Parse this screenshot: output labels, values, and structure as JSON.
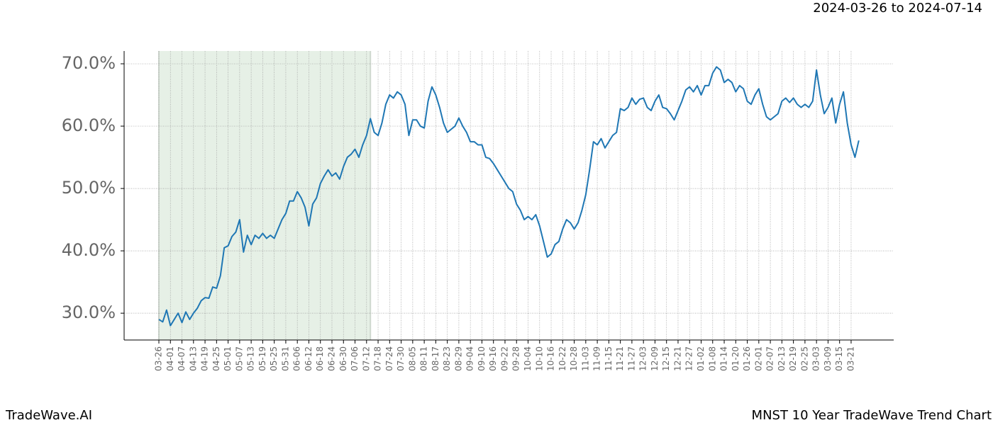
{
  "chart_data": {
    "type": "line",
    "title": "MNST 10 Year TradeWave Trend Chart",
    "date_range": "2024-03-26 to 2024-07-14",
    "watermark": "TradeWave.AI",
    "highlight_range": [
      0,
      55
    ],
    "grid": true,
    "ylim": [
      25.7,
      72.05
    ],
    "yticks": [
      {
        "value": 30,
        "label": "30.0%"
      },
      {
        "value": 40,
        "label": "40.0%"
      },
      {
        "value": 50,
        "label": "50.0%"
      },
      {
        "value": 60,
        "label": "60.0%"
      },
      {
        "value": 70,
        "label": "70.0%"
      }
    ],
    "categories": [
      "03-26",
      null,
      null,
      "04-01",
      null,
      null,
      "04-07",
      null,
      null,
      "04-13",
      null,
      null,
      "04-19",
      null,
      null,
      "04-25",
      null,
      null,
      "05-01",
      null,
      null,
      "05-07",
      null,
      null,
      "05-13",
      null,
      null,
      "05-19",
      null,
      null,
      "05-25",
      null,
      null,
      "05-31",
      null,
      null,
      "06-06",
      null,
      null,
      "06-12",
      null,
      null,
      "06-18",
      null,
      null,
      "06-24",
      null,
      null,
      "06-30",
      null,
      null,
      "07-06",
      null,
      null,
      "07-12",
      null,
      null,
      "07-18",
      null,
      null,
      "07-24",
      null,
      null,
      "07-30",
      null,
      null,
      "08-05",
      null,
      null,
      "08-11",
      null,
      null,
      "08-17",
      null,
      null,
      "08-23",
      null,
      null,
      "08-29",
      null,
      null,
      "09-04",
      null,
      null,
      "09-10",
      null,
      null,
      "09-16",
      null,
      null,
      "09-22",
      null,
      null,
      "09-28",
      null,
      null,
      "10-04",
      null,
      null,
      "10-10",
      null,
      null,
      "10-16",
      null,
      null,
      "10-22",
      null,
      null,
      "10-28",
      null,
      null,
      "11-03",
      null,
      null,
      "11-09",
      null,
      null,
      "11-15",
      null,
      null,
      "11-21",
      null,
      null,
      "11-27",
      null,
      null,
      "12-03",
      null,
      null,
      "12-09",
      null,
      null,
      "12-15",
      null,
      null,
      "12-21",
      null,
      null,
      "12-27",
      null,
      null,
      "01-02",
      null,
      null,
      "01-08",
      null,
      null,
      "01-14",
      null,
      null,
      "01-20",
      null,
      null,
      "01-26",
      null,
      null,
      "02-01",
      null,
      null,
      "02-07",
      null,
      null,
      "02-13",
      null,
      null,
      "02-19",
      null,
      null,
      "02-25",
      null,
      null,
      "03-03",
      null,
      null,
      "03-09",
      null,
      null,
      "03-15",
      null,
      null,
      "03-21",
      null,
      null
    ],
    "series": [
      {
        "color": "#1f77b4",
        "values": [
          29.0,
          28.6,
          30.5,
          28.0,
          29.0,
          30.0,
          28.5,
          30.2,
          29.0,
          30.0,
          30.8,
          32.0,
          32.5,
          32.4,
          34.2,
          34.0,
          36.0,
          40.5,
          40.8,
          42.3,
          43.0,
          45.0,
          39.8,
          42.5,
          41.0,
          42.5,
          42.0,
          42.8,
          42.0,
          42.5,
          42.0,
          43.5,
          45.0,
          46.0,
          48.0,
          48.0,
          49.5,
          48.5,
          47.0,
          44.0,
          47.5,
          48.5,
          50.8,
          52.0,
          53.0,
          52.0,
          52.5,
          51.5,
          53.5,
          55.0,
          55.5,
          56.3,
          55.0,
          57.0,
          58.5,
          61.2,
          59.0,
          58.5,
          60.5,
          63.5,
          65.0,
          64.5,
          65.5,
          65.0,
          63.5,
          58.5,
          61.0,
          61.0,
          60.0,
          59.7,
          64.0,
          66.3,
          65.0,
          63.0,
          60.5,
          59.0,
          59.5,
          60.0,
          61.3,
          60.0,
          59.0,
          57.5,
          57.5,
          57.0,
          57.0,
          55.0,
          54.8,
          54.0,
          53.0,
          52.0,
          51.0,
          50.0,
          49.5,
          47.5,
          46.5,
          45.0,
          45.5,
          45.0,
          45.8,
          44.0,
          41.5,
          39.0,
          39.5,
          41.0,
          41.5,
          43.5,
          45.0,
          44.5,
          43.5,
          44.5,
          46.5,
          49.0,
          53.0,
          57.5,
          57.0,
          58.0,
          56.5,
          57.5,
          58.5,
          59.0,
          62.8,
          62.5,
          63.0,
          64.5,
          63.5,
          64.3,
          64.5,
          63.0,
          62.5,
          64.0,
          65.0,
          63.0,
          62.8,
          62.0,
          61.0,
          62.5,
          64.0,
          65.8,
          66.3,
          65.5,
          66.5,
          65.0,
          66.5,
          66.5,
          68.5,
          69.5,
          69.0,
          67.0,
          67.5,
          67.0,
          65.5,
          66.5,
          66.0,
          64.0,
          63.5,
          65.0,
          66.0,
          63.5,
          61.5,
          61.0,
          61.5,
          62.0,
          64.0,
          64.5,
          63.8,
          64.5,
          63.5,
          63.0,
          63.5,
          63.0,
          64.0,
          69.0,
          65.0,
          62.0,
          63.0,
          64.5,
          60.5,
          63.5,
          65.5,
          60.5,
          57.0,
          55.0,
          57.7
        ]
      }
    ]
  }
}
